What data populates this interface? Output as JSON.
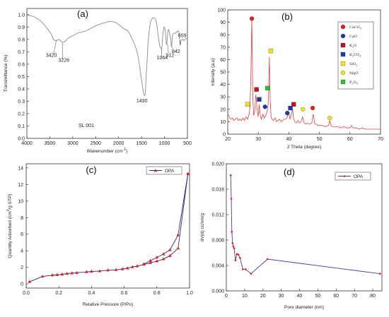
{
  "chart_data": [
    {
      "panel": "(a)",
      "type": "line",
      "xlabel": "Wavenumber (cm",
      "xlabel_sup": "-1",
      "xlabel_tail": ")",
      "ylabel": "Transmittance (%)",
      "xlim": [
        4000,
        500
      ],
      "ylim": [
        0.0,
        1.05
      ],
      "xticks": [
        "4000",
        "3500",
        "3000",
        "2500",
        "2000",
        "1500",
        "1000",
        "500"
      ],
      "yticks": [
        "0.0",
        "0.1",
        "0.2",
        "0.3",
        "0.4",
        "0.5",
        "0.6",
        "0.7",
        "0.8",
        "0.9",
        "1.0"
      ],
      "series": [
        {
          "x": [
            4000,
            3900,
            3800,
            3700,
            3600,
            3500,
            3450,
            3420,
            3380,
            3330,
            3300,
            3260,
            3226,
            3180,
            3100,
            3000,
            2900,
            2800,
            2700,
            2600,
            2500,
            2400,
            2300,
            2200,
            2150,
            2100,
            2050,
            2000,
            1950,
            1900,
            1850,
            1800,
            1750,
            1700,
            1650,
            1600,
            1570,
            1540,
            1510,
            1480,
            1460,
            1445,
            1430,
            1420,
            1410,
            1400,
            1380,
            1360,
            1330,
            1300,
            1260,
            1230,
            1200,
            1170,
            1150,
            1120,
            1100,
            1080,
            1064,
            1050,
            1040,
            1030,
            1010,
            990,
            970,
            960,
            950,
            940,
            930,
            912,
            900,
            890,
            875,
            865,
            855,
            850,
            842,
            835,
            830,
            820,
            800,
            780,
            760,
            740,
            720,
            700,
            680,
            670,
            659,
            650,
            640,
            620,
            600,
            580,
            560,
            540,
            520,
            500
          ],
          "y": [
            0.995,
            0.99,
            0.975,
            0.95,
            0.91,
            0.86,
            0.83,
            0.8,
            0.79,
            0.795,
            0.8,
            0.79,
            0.775,
            0.78,
            0.81,
            0.83,
            0.85,
            0.86,
            0.87,
            0.89,
            0.91,
            0.925,
            0.935,
            0.945,
            0.945,
            0.94,
            0.935,
            0.92,
            0.905,
            0.89,
            0.88,
            0.87,
            0.84,
            0.8,
            0.76,
            0.7,
            0.65,
            0.58,
            0.5,
            0.42,
            0.37,
            0.35,
            0.345,
            0.36,
            0.42,
            0.5,
            0.62,
            0.76,
            0.88,
            0.95,
            0.975,
            0.975,
            0.965,
            0.93,
            0.87,
            0.78,
            0.74,
            0.73,
            0.72,
            0.76,
            0.82,
            0.86,
            0.9,
            0.89,
            0.82,
            0.76,
            0.76,
            0.8,
            0.86,
            0.88,
            0.87,
            0.85,
            0.82,
            0.8,
            0.77,
            0.74,
            0.75,
            0.79,
            0.82,
            0.84,
            0.85,
            0.85,
            0.85,
            0.86,
            0.86,
            0.87,
            0.85,
            0.8,
            0.755,
            0.76,
            0.79,
            0.8,
            0.8,
            0.79,
            0.8,
            0.8,
            0.81,
            0.81
          ]
        }
      ],
      "annotations": [
        "3420",
        "3226",
        "1430",
        "1064",
        "912",
        "842",
        "659",
        "SL 001"
      ]
    },
    {
      "panel": "(b)",
      "type": "line",
      "xlabel": "2 Theta (degree)",
      "ylabel": "Intensity (a.u)",
      "xlim": [
        20,
        70
      ],
      "ylim": [
        0,
        100
      ],
      "xticks": [
        "20",
        "30",
        "40",
        "50",
        "60",
        "70"
      ],
      "yticks": [
        "0",
        "10",
        "20",
        "30",
        "40",
        "50",
        "60",
        "70",
        "80",
        "90",
        "100"
      ],
      "series": [
        {
          "x": [
            20,
            20.5,
            21,
            21.5,
            22,
            22.5,
            23,
            23.5,
            24,
            24.5,
            25,
            25.5,
            26,
            26.5,
            27,
            27.3,
            27.6,
            27.9,
            28.2,
            28.5,
            28.8,
            29.2,
            29.6,
            30,
            30.3,
            30.6,
            31,
            31.5,
            32,
            32.5,
            33,
            33.3,
            33.6,
            33.9,
            34.2,
            34.5,
            35,
            35.5,
            36,
            36.5,
            37,
            37.5,
            38,
            38.5,
            39,
            39.5,
            40,
            40.4,
            40.8,
            41.2,
            41.6,
            42,
            42.5,
            43,
            43.5,
            44,
            44.5,
            45,
            45.5,
            46,
            46.5,
            47,
            47.5,
            48,
            48.5,
            49,
            49.5,
            50,
            51,
            52,
            53,
            53.4,
            53.8,
            54.2,
            55,
            56,
            57,
            58,
            59,
            60,
            60.5,
            61,
            62,
            63,
            64,
            65,
            66,
            67,
            68,
            69,
            70
          ],
          "y": [
            16,
            14,
            12,
            13,
            11,
            12,
            13,
            11,
            12,
            11,
            13,
            11,
            14,
            12,
            16,
            22,
            50,
            94,
            30,
            15,
            18,
            32,
            20,
            14,
            24,
            16,
            12,
            16,
            13,
            15,
            20,
            26,
            62,
            28,
            14,
            12,
            11,
            13,
            10,
            11,
            12,
            10,
            11,
            12,
            12,
            14,
            18,
            12,
            16,
            20,
            12,
            10,
            9,
            11,
            9,
            10,
            14,
            9,
            8,
            9,
            8,
            8,
            9,
            16,
            8,
            8,
            7,
            7,
            7,
            6,
            7,
            11,
            7,
            6,
            6,
            6,
            5,
            6,
            5,
            5,
            7,
            5,
            5,
            4,
            5,
            4,
            4,
            4,
            4,
            4,
            4
          ]
        }
      ],
      "markers": [
        {
          "x": 27.9,
          "y": 93,
          "shape": "circle",
          "color": "#e0201e"
        },
        {
          "x": 29.4,
          "y": 36,
          "shape": "square",
          "color": "#c0141a"
        },
        {
          "x": 30.3,
          "y": 28,
          "shape": "square",
          "color": "#1c3aa8"
        },
        {
          "x": 26.5,
          "y": 24,
          "shape": "square",
          "color": "#f0e21c"
        },
        {
          "x": 32.2,
          "y": 22,
          "shape": "circle",
          "color": "#1c3aa8"
        },
        {
          "x": 33.0,
          "y": 37,
          "shape": "square",
          "color": "#2ec12e"
        },
        {
          "x": 34.1,
          "y": 67,
          "shape": "square",
          "color": "#f0e21c"
        },
        {
          "x": 39.5,
          "y": 17,
          "shape": "circle",
          "color": "#1c3aa8"
        },
        {
          "x": 40.5,
          "y": 21,
          "shape": "square",
          "color": "#1c3aa8"
        },
        {
          "x": 41.6,
          "y": 24,
          "shape": "square",
          "color": "#c0141a"
        },
        {
          "x": 44.6,
          "y": 20,
          "shape": "circle",
          "color": "#f0e21c"
        },
        {
          "x": 47.8,
          "y": 21,
          "shape": "circle",
          "color": "#e0201e"
        },
        {
          "x": 53.4,
          "y": 13,
          "shape": "circle",
          "color": "#f0e21c"
        }
      ],
      "legend": [
        {
          "label": "CaCO",
          "sub": "3",
          "shape": "circle",
          "color": "#e0201e"
        },
        {
          "label": "CaO",
          "sub": "",
          "shape": "circle",
          "color": "#1c3aa8"
        },
        {
          "label": "K",
          "sub": "2",
          "tail": "O",
          "shape": "square",
          "color": "#c0141a"
        },
        {
          "label": "K",
          "sub": "2",
          "tail": "CO",
          "sub2": "3",
          "shape": "square",
          "color": "#1c3aa8"
        },
        {
          "label": "SiO",
          "sub": "2",
          "shape": "square",
          "color": "#f0e21c"
        },
        {
          "label": "MgO",
          "sub": "",
          "shape": "circle",
          "color": "#f0e21c"
        },
        {
          "label": "P",
          "sub": "2",
          "tail": "O",
          "sub2": "5",
          "shape": "square",
          "color": "#2ec12e"
        }
      ]
    },
    {
      "panel": "(c)",
      "type": "line",
      "xlabel": "Relative Pressure (P/Po)",
      "ylabel": "Quantity Adsorbed (cm",
      "ylabel_sup": "3",
      "ylabel_tail": "/g STP)",
      "xlim": [
        0.0,
        1.0
      ],
      "ylim": [
        -0.5,
        14.5
      ],
      "xticks": [
        "0.0",
        "0.2",
        "0.4",
        "0.6",
        "0.8",
        "1.0"
      ],
      "yticks": [
        "0",
        "2",
        "4",
        "6",
        "8",
        "10",
        "12",
        "14"
      ],
      "legend": [
        "OPA"
      ],
      "series": [
        {
          "name": "OPA",
          "role": "adsorption",
          "x": [
            0.02,
            0.1,
            0.16,
            0.19,
            0.22,
            0.25,
            0.28,
            0.31,
            0.37,
            0.4,
            0.45,
            0.5,
            0.55,
            0.59,
            0.62,
            0.65,
            0.68,
            0.72,
            0.76,
            0.8,
            0.84,
            0.88,
            0.93,
            0.99
          ],
          "y": [
            0.25,
            0.9,
            1.05,
            1.1,
            1.15,
            1.25,
            1.3,
            1.35,
            1.45,
            1.5,
            1.55,
            1.65,
            1.7,
            1.8,
            1.9,
            2.05,
            2.15,
            2.35,
            2.55,
            2.75,
            3.0,
            3.4,
            4.3,
            13.3
          ]
        },
        {
          "name": "OPA",
          "role": "desorption",
          "x": [
            0.99,
            0.93,
            0.88,
            0.84,
            0.8,
            0.76,
            0.72
          ],
          "y": [
            13.3,
            5.9,
            4.1,
            3.6,
            3.2,
            2.8,
            2.4
          ]
        }
      ]
    },
    {
      "panel": "(d)",
      "type": "line",
      "xlabel": "Pore diameter (nm)",
      "ylabel": "dV(d) cc/nm/g",
      "xlim": [
        0,
        85
      ],
      "ylim": [
        0.0,
        0.02
      ],
      "xticks": [
        "0",
        "10",
        "20",
        "30",
        "40",
        "50",
        "60",
        "70",
        "80"
      ],
      "yticks": [
        "0.000",
        "0.004",
        "0.008",
        "0.012",
        "0.016",
        "0.020"
      ],
      "legend": [
        "OPA"
      ],
      "series": [
        {
          "name": "OPA",
          "x": [
            2.4,
            2.7,
            3.0,
            3.4,
            3.8,
            4.3,
            5.0,
            5.8,
            6.6,
            7.5,
            9.0,
            10.5,
            13.5,
            22.5,
            84
          ],
          "y": [
            0.0182,
            0.0145,
            0.0093,
            0.0075,
            0.007,
            0.0067,
            0.0048,
            0.0058,
            0.0057,
            0.0052,
            0.0034,
            0.0034,
            0.0027,
            0.005,
            0.0027
          ]
        }
      ]
    }
  ]
}
